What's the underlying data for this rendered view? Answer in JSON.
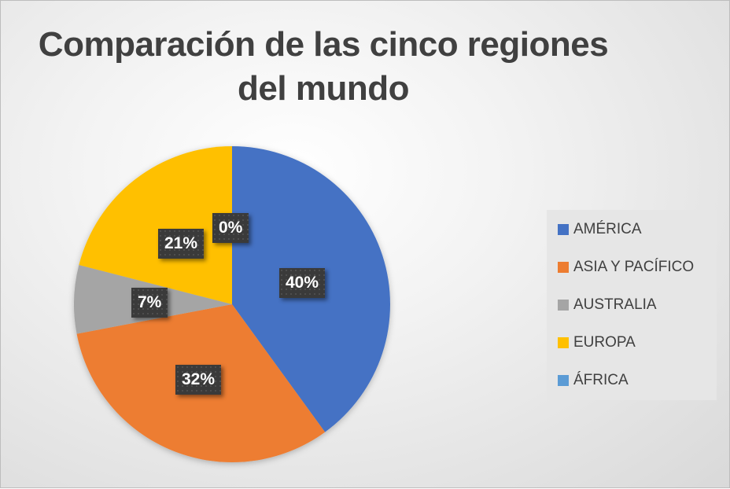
{
  "chart_data": {
    "type": "pie",
    "title": "Comparación de las cinco regiones del mundo",
    "title_lines": [
      "Comparación de las cinco regiones",
      "del mundo"
    ],
    "categories": [
      "AMÉRICA",
      "ASIA Y PACÍFICO",
      "AUSTRALIA",
      "EUROPA",
      "ÁFRICA"
    ],
    "values": [
      40,
      32,
      7,
      21,
      0
    ],
    "labels": [
      "40%",
      "32%",
      "7%",
      "21%",
      "0%"
    ],
    "colors": [
      "#4472C4",
      "#ED7D31",
      "#A5A5A5",
      "#FFC000",
      "#5B9BD5"
    ],
    "legend_position": "right",
    "start_angle": "12 o'clock, clockwise"
  }
}
